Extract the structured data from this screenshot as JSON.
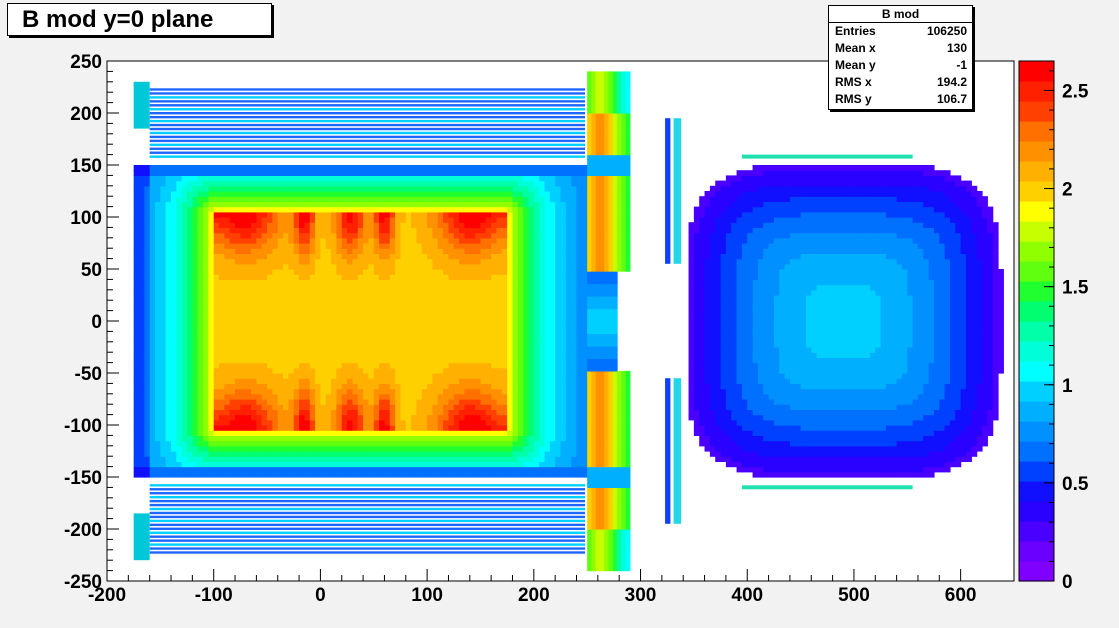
{
  "title": "B mod y=0 plane",
  "stats": {
    "name": "B mod",
    "rows": [
      {
        "label": "Entries",
        "value": "106250"
      },
      {
        "label": "Mean x",
        "value": "130"
      },
      {
        "label": "Mean y",
        "value": "-1"
      },
      {
        "label": "RMS x",
        "value": "194.2"
      },
      {
        "label": "RMS y",
        "value": "106.7"
      }
    ]
  },
  "chart_data": {
    "type": "heatmap",
    "title": "B mod y=0 plane",
    "xlabel": "",
    "ylabel": "",
    "zlabel": "",
    "xlim": [
      -200,
      650
    ],
    "ylim": [
      -250,
      250
    ],
    "zlim": [
      0,
      2.65
    ],
    "x_ticks": [
      -200,
      -100,
      0,
      100,
      200,
      300,
      400,
      500,
      600
    ],
    "y_ticks": [
      250,
      200,
      150,
      100,
      50,
      0,
      -50,
      -100,
      -150,
      -200,
      -250
    ],
    "z_ticks": [
      0,
      0.5,
      1,
      1.5,
      2,
      2.5
    ],
    "x_tick_labels": [
      "-200",
      "-100",
      "0",
      "100",
      "200",
      "300",
      "400",
      "500",
      "600"
    ],
    "y_tick_labels": [
      "250",
      "200",
      "150",
      "100",
      "50",
      "0",
      "-50",
      "-100",
      "-150",
      "-200",
      "-250"
    ],
    "z_tick_labels": [
      "0",
      "0.5",
      "1",
      "1.5",
      "2",
      "2.5"
    ],
    "palette": [
      "#7f00ff",
      "#6a00ff",
      "#4a00ff",
      "#2a00ff",
      "#1010ff",
      "#0040ff",
      "#0070ff",
      "#0090ff",
      "#00b0ff",
      "#00d0ff",
      "#00ffff",
      "#00ffd8",
      "#00ffa8",
      "#00ff70",
      "#20ff30",
      "#60ff10",
      "#90ff00",
      "#c8ff00",
      "#ffff00",
      "#ffd000",
      "#ffb000",
      "#ff9000",
      "#ff7000",
      "#ff4000",
      "#ff2000",
      "#ff0000"
    ],
    "grid": false,
    "regions": [
      {
        "name": "inner core field",
        "x": [
          -100,
          175
        ],
        "y": [
          -105,
          105
        ],
        "B": 2.0
      },
      {
        "name": "coil corners peak",
        "x": [
          -100,
          175
        ],
        "y": [
          -105,
          105
        ],
        "B": 2.6
      },
      {
        "name": "core surroundings",
        "x": [
          -175,
          250
        ],
        "y": [
          -150,
          150
        ],
        "B": 0.6
      },
      {
        "name": "upper coil windings",
        "x": [
          -175,
          250
        ],
        "y": [
          160,
          225
        ],
        "B": 0.5
      },
      {
        "name": "lower coil windings",
        "x": [
          -175,
          250
        ],
        "y": [
          -225,
          -160
        ],
        "B": 0.5
      },
      {
        "name": "iron plate",
        "x": [
          250,
          290
        ],
        "y": [
          -240,
          240
        ],
        "B": 2.2
      },
      {
        "name": "thin plate",
        "x": [
          325,
          335
        ],
        "y": [
          -190,
          190
        ],
        "B": 0.8
      },
      {
        "name": "downstream region",
        "x": [
          350,
          630
        ],
        "y": [
          -150,
          150
        ],
        "B": 0.9
      }
    ]
  }
}
